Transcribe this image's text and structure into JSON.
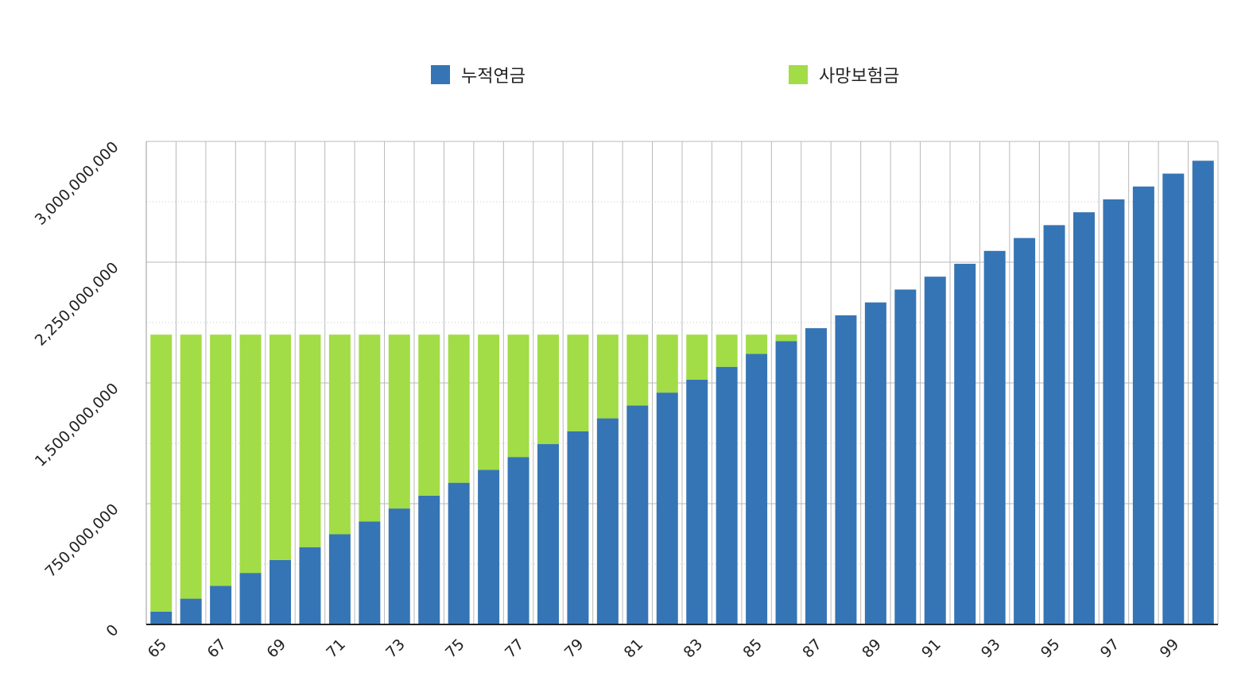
{
  "legend": [
    {
      "name": "누적연금",
      "color": "#3575b5"
    },
    {
      "name": "사망보험금",
      "color": "#a2dc46"
    }
  ],
  "chart_data": {
    "type": "bar",
    "stacked": true,
    "title": "",
    "xlabel": "",
    "ylabel": "",
    "ylim": [
      0,
      3000000000
    ],
    "y_ticks": [
      "0",
      "750,000,000",
      "1,500,000,000",
      "2,250,000,000",
      "3,000,000,000"
    ],
    "x_tick_labels": [
      "65",
      "67",
      "69",
      "71",
      "73",
      "75",
      "77",
      "79",
      "81",
      "83",
      "85",
      "87",
      "89",
      "91",
      "93",
      "95",
      "97",
      "99"
    ],
    "grid": true,
    "legend_position": "top",
    "categories": [
      "65",
      "66",
      "67",
      "68",
      "69",
      "70",
      "71",
      "72",
      "73",
      "74",
      "75",
      "76",
      "77",
      "78",
      "79",
      "80",
      "81",
      "82",
      "83",
      "84",
      "85",
      "86",
      "87",
      "88",
      "89",
      "90",
      "91",
      "92",
      "93",
      "94",
      "95",
      "96",
      "97",
      "98",
      "99",
      "100"
    ],
    "series": [
      {
        "name": "누적연금",
        "color": "#3575b5",
        "values": [
          80000000,
          160000000,
          240000000,
          320000000,
          400000000,
          480000000,
          560000000,
          640000000,
          720000000,
          800000000,
          880000000,
          960000000,
          1040000000,
          1120000000,
          1200000000,
          1280000000,
          1360000000,
          1440000000,
          1520000000,
          1600000000,
          1680000000,
          1760000000,
          1840000000,
          1920000000,
          2000000000,
          2080000000,
          2160000000,
          2240000000,
          2320000000,
          2400000000,
          2480000000,
          2560000000,
          2640000000,
          2720000000,
          2800000000,
          2880000000
        ]
      },
      {
        "name": "사망보험금",
        "color": "#a2dc46",
        "values": [
          1720000000,
          1640000000,
          1560000000,
          1480000000,
          1400000000,
          1320000000,
          1240000000,
          1160000000,
          1080000000,
          1000000000,
          920000000,
          840000000,
          760000000,
          680000000,
          600000000,
          520000000,
          440000000,
          360000000,
          280000000,
          200000000,
          120000000,
          40000000,
          0,
          0,
          0,
          0,
          0,
          0,
          0,
          0,
          0,
          0,
          0,
          0,
          0,
          0
        ]
      }
    ]
  }
}
